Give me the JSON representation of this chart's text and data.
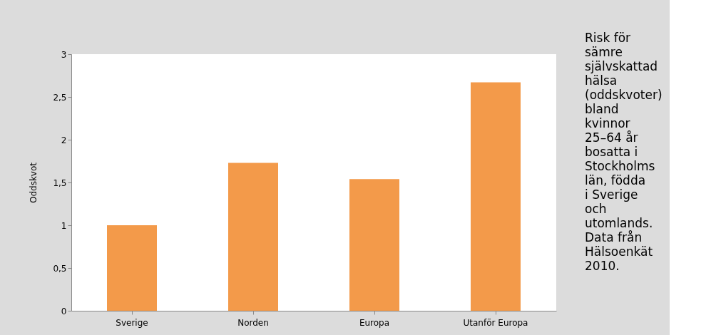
{
  "chart_data": {
    "type": "bar",
    "ylabel": "Oddskvot",
    "categories": [
      "Sverige",
      "Norden",
      "Europa",
      "Utanför Europa"
    ],
    "values": [
      1.0,
      1.73,
      1.54,
      2.67
    ],
    "color": "#f39a4a",
    "ylim": [
      0,
      3
    ],
    "yticks": [
      0,
      {
        "value": 0.5,
        "label": "0,5"
      },
      1,
      {
        "value": 1.5,
        "label": "1,5"
      },
      2,
      {
        "value": 2.5,
        "label": "2,5"
      },
      3
    ],
    "grid": false,
    "annotations": [
      "Risk för sämre självskattad hälsa (oddskvoter) bland kvinnor 25–64 år bosatta i Stockholms län, födda i Sverige och utomlands. Data från Hälsoenkät 2010."
    ]
  }
}
